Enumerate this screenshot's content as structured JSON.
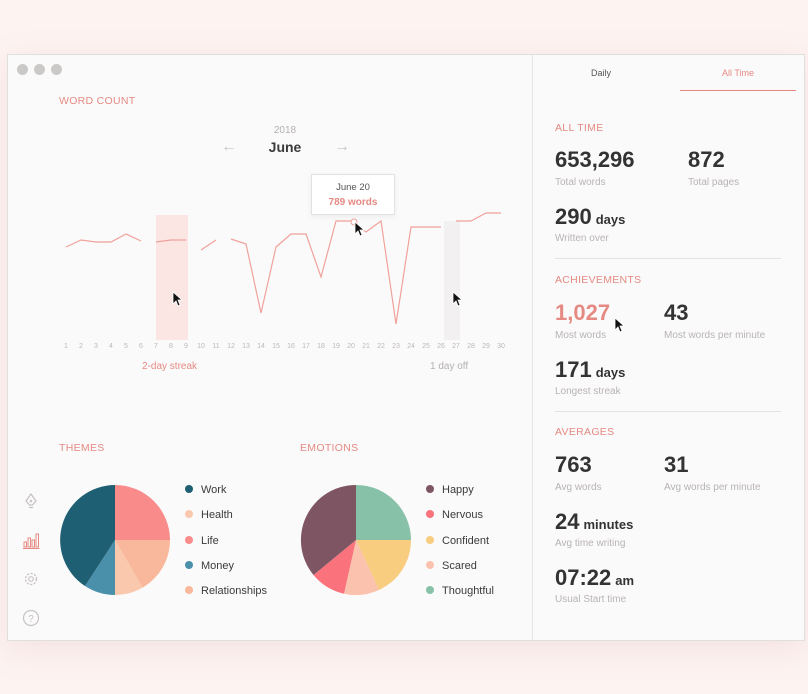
{
  "main": {
    "word_count_label": "WORD COUNT",
    "year": "2018",
    "month": "June",
    "tooltip": {
      "date": "June 20",
      "words": "789 words"
    },
    "days": [
      "1",
      "2",
      "3",
      "4",
      "5",
      "6",
      "7",
      "8",
      "9",
      "10",
      "11",
      "12",
      "13",
      "14",
      "15",
      "16",
      "17",
      "18",
      "19",
      "20",
      "21",
      "22",
      "23",
      "24",
      "25",
      "26",
      "27",
      "28",
      "29",
      "30"
    ],
    "streak_label": "2-day streak",
    "dayoff_label": "1 day off",
    "themes_label": "THEMES",
    "emotions_label": "EMOTIONS",
    "themes": [
      {
        "label": "Work",
        "color": "#1e5f73"
      },
      {
        "label": "Health",
        "color": "#f9c8ad"
      },
      {
        "label": "Life",
        "color": "#f98b8b"
      },
      {
        "label": "Money",
        "color": "#4b90ab"
      },
      {
        "label": "Relationships",
        "color": "#f9b89b"
      }
    ],
    "emotions": [
      {
        "label": "Happy",
        "color": "#7e5663"
      },
      {
        "label": "Nervous",
        "color": "#f9727c"
      },
      {
        "label": "Confident",
        "color": "#f9cd7f"
      },
      {
        "label": "Scared",
        "color": "#fbc3ad"
      },
      {
        "label": "Thoughtful",
        "color": "#86c1a8"
      }
    ]
  },
  "side": {
    "tabs": [
      "Daily",
      "All Time"
    ],
    "active_tab": "All Time",
    "all_time_label": "ALL TIME",
    "total_words": "653,296",
    "total_words_cap": "Total words",
    "total_pages": "872",
    "total_pages_cap": "Total pages",
    "written_over": "290",
    "written_over_unit": "days",
    "written_over_cap": "Written over",
    "achievements_label": "ACHIEVEMENTS",
    "most_words": "1,027",
    "most_words_cap": "Most words",
    "most_wpm": "43",
    "most_wpm_cap": "Most words per minute",
    "longest_streak": "171",
    "longest_streak_unit": "days",
    "longest_streak_cap": "Longest streak",
    "averages_label": "AVERAGES",
    "avg_words": "763",
    "avg_words_cap": "Avg words",
    "avg_wpm": "31",
    "avg_wpm_cap": "Avg words per minute",
    "avg_time": "24",
    "avg_time_unit": "minutes",
    "avg_time_cap": "Avg time writing",
    "start_time": "07:22",
    "start_time_unit": "am",
    "start_time_cap": "Usual Start time"
  },
  "colors": {
    "accent": "#e58a83",
    "text_dark": "#333333",
    "muted": "#b8b3b3"
  }
}
